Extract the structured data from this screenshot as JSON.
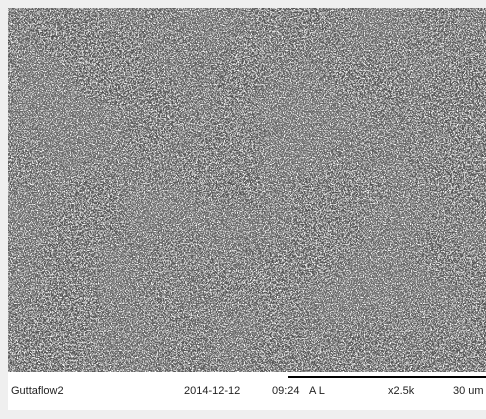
{
  "caption": {
    "sample": "Guttaflow2",
    "date": "2014-12-12",
    "time": "09:24",
    "mode": "A L",
    "magnification": "x2.5k",
    "scale": "30 um"
  }
}
